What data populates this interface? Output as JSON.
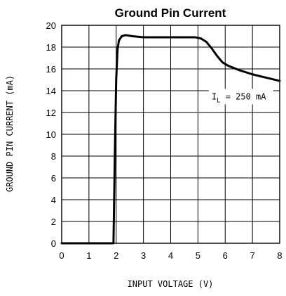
{
  "chart_data": {
    "type": "line",
    "title": "Ground Pin Current",
    "xlabel": "INPUT VOLTAGE (V)",
    "ylabel": "GROUND PIN CURRENT (mA)",
    "xlim": [
      0,
      8
    ],
    "ylim": [
      0,
      20
    ],
    "x_ticks": [
      0,
      1,
      2,
      3,
      4,
      5,
      6,
      7,
      8
    ],
    "y_ticks": [
      0,
      2,
      4,
      6,
      8,
      10,
      12,
      14,
      16,
      18,
      20
    ],
    "grid": true,
    "series": [
      {
        "x": [
          0,
          1.0,
          1.9,
          1.95,
          2.0,
          2.05,
          2.1,
          2.2,
          2.35,
          2.6,
          3.0,
          3.5,
          4.0,
          4.5,
          4.9,
          5.1,
          5.3,
          5.5,
          5.7,
          5.9,
          6.1,
          6.5,
          7.0,
          7.5,
          8.0
        ],
        "y": [
          0,
          0,
          0,
          8,
          15.0,
          17.8,
          18.6,
          19.0,
          19.1,
          19.0,
          18.9,
          18.9,
          18.9,
          18.9,
          18.9,
          18.8,
          18.5,
          17.9,
          17.2,
          16.6,
          16.3,
          15.9,
          15.5,
          15.2,
          14.9
        ]
      }
    ],
    "annotation": {
      "text": "I",
      "subscript": "L",
      "suffix": " = 250 mA",
      "x": 5.5,
      "y": 13.2
    },
    "line_color": "#000000"
  }
}
